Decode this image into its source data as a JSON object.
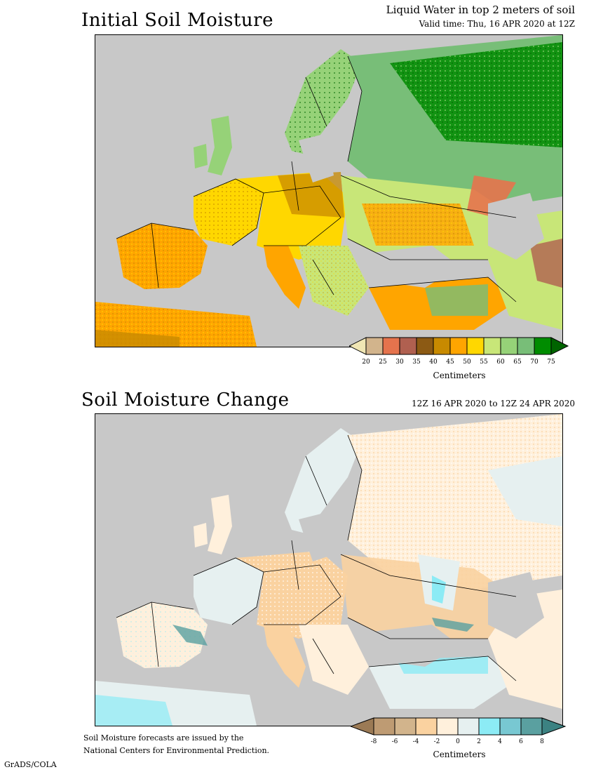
{
  "panel1": {
    "title": "Initial Soil Moisture",
    "subtitle_line1": "Liquid Water in top 2 meters of soil",
    "subtitle_line2": "Valid time: Thu, 16 APR 2020 at 12Z",
    "colorbar": {
      "unit": "Centimeters",
      "ticks": [
        "20",
        "25",
        "30",
        "35",
        "40",
        "45",
        "50",
        "55",
        "60",
        "65",
        "70",
        "75"
      ],
      "low_color": "#f0e6b4",
      "high_color": "#006400",
      "colors": [
        "#d2b48c",
        "#e5734d",
        "#b06050",
        "#8c5a14",
        "#c88a00",
        "#ffa500",
        "#ffd700",
        "#c8e678",
        "#96d278",
        "#78be78",
        "#008c00"
      ]
    }
  },
  "panel2": {
    "title": "Soil Moisture Change",
    "subtitle": "12Z 16 APR 2020 to 12Z 24 APR 2020",
    "colorbar": {
      "unit": "Centimeters",
      "ticks": [
        "-8",
        "-6",
        "-4",
        "-2",
        "0",
        "2",
        "4",
        "6",
        "8"
      ],
      "low_color": "#9b7a55",
      "high_color": "#3c8282",
      "colors": [
        "#be9b73",
        "#d2b48c",
        "#fad2a0",
        "#fff0dc",
        "#e6f0f0",
        "#8cebf5",
        "#78c8d2",
        "#5aa0a0"
      ]
    }
  },
  "footer": {
    "note_line1": "Soil Moisture forecasts are issued by the",
    "note_line2": "National Centers for Environmental Prediction.",
    "credit": "GrADS/COLA"
  },
  "colors": {
    "water": "#c8c8c8",
    "map_border": "#000000"
  }
}
